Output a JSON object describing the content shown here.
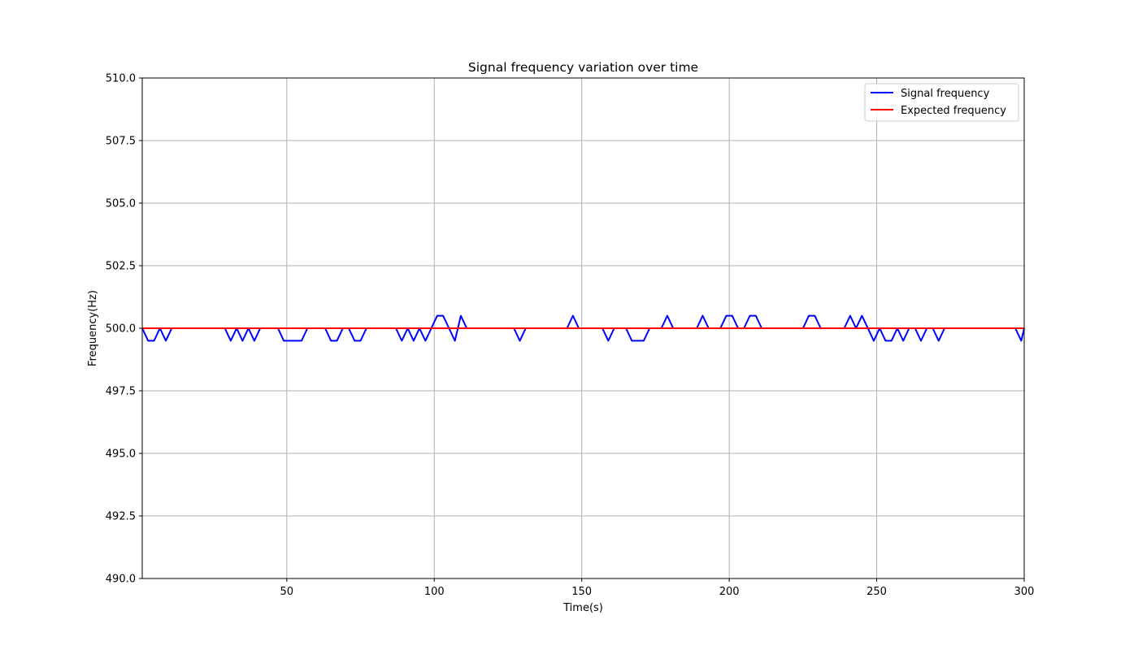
{
  "chart_data": {
    "type": "line",
    "title": "Signal frequency variation over time",
    "xlabel": "Time(s)",
    "ylabel": "Frequency(Hz)",
    "xlim": [
      1,
      300
    ],
    "ylim": [
      490.0,
      510.0
    ],
    "xticks": [
      50,
      100,
      150,
      200,
      250,
      300
    ],
    "yticks": [
      "490.0",
      "492.5",
      "495.0",
      "497.5",
      "500.0",
      "502.5",
      "505.0",
      "507.5",
      "510.0"
    ],
    "grid": true,
    "legend_position": "top-right",
    "series": [
      {
        "name": "Signal frequency",
        "color": "#0000ff",
        "x": [
          1,
          3,
          5,
          7,
          9,
          11,
          13,
          15,
          17,
          19,
          21,
          23,
          25,
          27,
          29,
          31,
          33,
          35,
          37,
          39,
          41,
          43,
          45,
          47,
          49,
          51,
          53,
          55,
          57,
          59,
          61,
          63,
          65,
          67,
          69,
          71,
          73,
          75,
          77,
          79,
          81,
          83,
          85,
          87,
          89,
          91,
          93,
          95,
          97,
          99,
          101,
          103,
          105,
          107,
          109,
          111,
          113,
          115,
          117,
          119,
          121,
          123,
          125,
          127,
          129,
          131,
          133,
          135,
          137,
          139,
          141,
          143,
          145,
          147,
          149,
          151,
          153,
          155,
          157,
          159,
          161,
          163,
          165,
          167,
          169,
          171,
          173,
          175,
          177,
          179,
          181,
          183,
          185,
          187,
          189,
          191,
          193,
          195,
          197,
          199,
          201,
          203,
          205,
          207,
          209,
          211,
          213,
          215,
          217,
          219,
          221,
          223,
          225,
          227,
          229,
          231,
          233,
          235,
          237,
          239,
          241,
          243,
          245,
          247,
          249,
          251,
          253,
          255,
          257,
          259,
          261,
          263,
          265,
          267,
          269,
          271,
          273,
          275,
          277,
          279,
          281,
          283,
          285,
          287,
          289,
          291,
          293,
          295,
          297,
          299,
          300
        ],
        "y": [
          500.0,
          499.5,
          499.5,
          500.0,
          499.5,
          500.0,
          500.0,
          500.0,
          500.0,
          500.0,
          500.0,
          500.0,
          500.0,
          500.0,
          500.0,
          499.5,
          500.0,
          499.5,
          500.0,
          499.5,
          500.0,
          500.0,
          500.0,
          500.0,
          499.5,
          499.5,
          499.5,
          499.5,
          500.0,
          500.0,
          500.0,
          500.0,
          499.5,
          499.5,
          500.0,
          500.0,
          499.5,
          499.5,
          500.0,
          500.0,
          500.0,
          500.0,
          500.0,
          500.0,
          499.5,
          500.0,
          499.5,
          500.0,
          499.5,
          500.0,
          500.5,
          500.5,
          500.0,
          499.5,
          500.5,
          500.0,
          500.0,
          500.0,
          500.0,
          500.0,
          500.0,
          500.0,
          500.0,
          500.0,
          499.5,
          500.0,
          500.0,
          500.0,
          500.0,
          500.0,
          500.0,
          500.0,
          500.0,
          500.5,
          500.0,
          500.0,
          500.0,
          500.0,
          500.0,
          499.5,
          500.0,
          500.0,
          500.0,
          499.5,
          499.5,
          499.5,
          500.0,
          500.0,
          500.0,
          500.5,
          500.0,
          500.0,
          500.0,
          500.0,
          500.0,
          500.5,
          500.0,
          500.0,
          500.0,
          500.5,
          500.5,
          500.0,
          500.0,
          500.5,
          500.5,
          500.0,
          500.0,
          500.0,
          500.0,
          500.0,
          500.0,
          500.0,
          500.0,
          500.5,
          500.5,
          500.0,
          500.0,
          500.0,
          500.0,
          500.0,
          500.5,
          500.0,
          500.5,
          500.0,
          499.5,
          500.0,
          499.5,
          499.5,
          500.0,
          499.5,
          500.0,
          500.0,
          499.5,
          500.0,
          500.0,
          499.5,
          500.0,
          500.0,
          500.0,
          500.0,
          500.0,
          500.0,
          500.0,
          500.0,
          500.0,
          500.0,
          500.0,
          500.0,
          500.0,
          499.5,
          500.0
        ]
      },
      {
        "name": "Expected frequency",
        "color": "#ff0000",
        "x": [
          1,
          300
        ],
        "y": [
          500.0,
          500.0
        ]
      }
    ]
  }
}
